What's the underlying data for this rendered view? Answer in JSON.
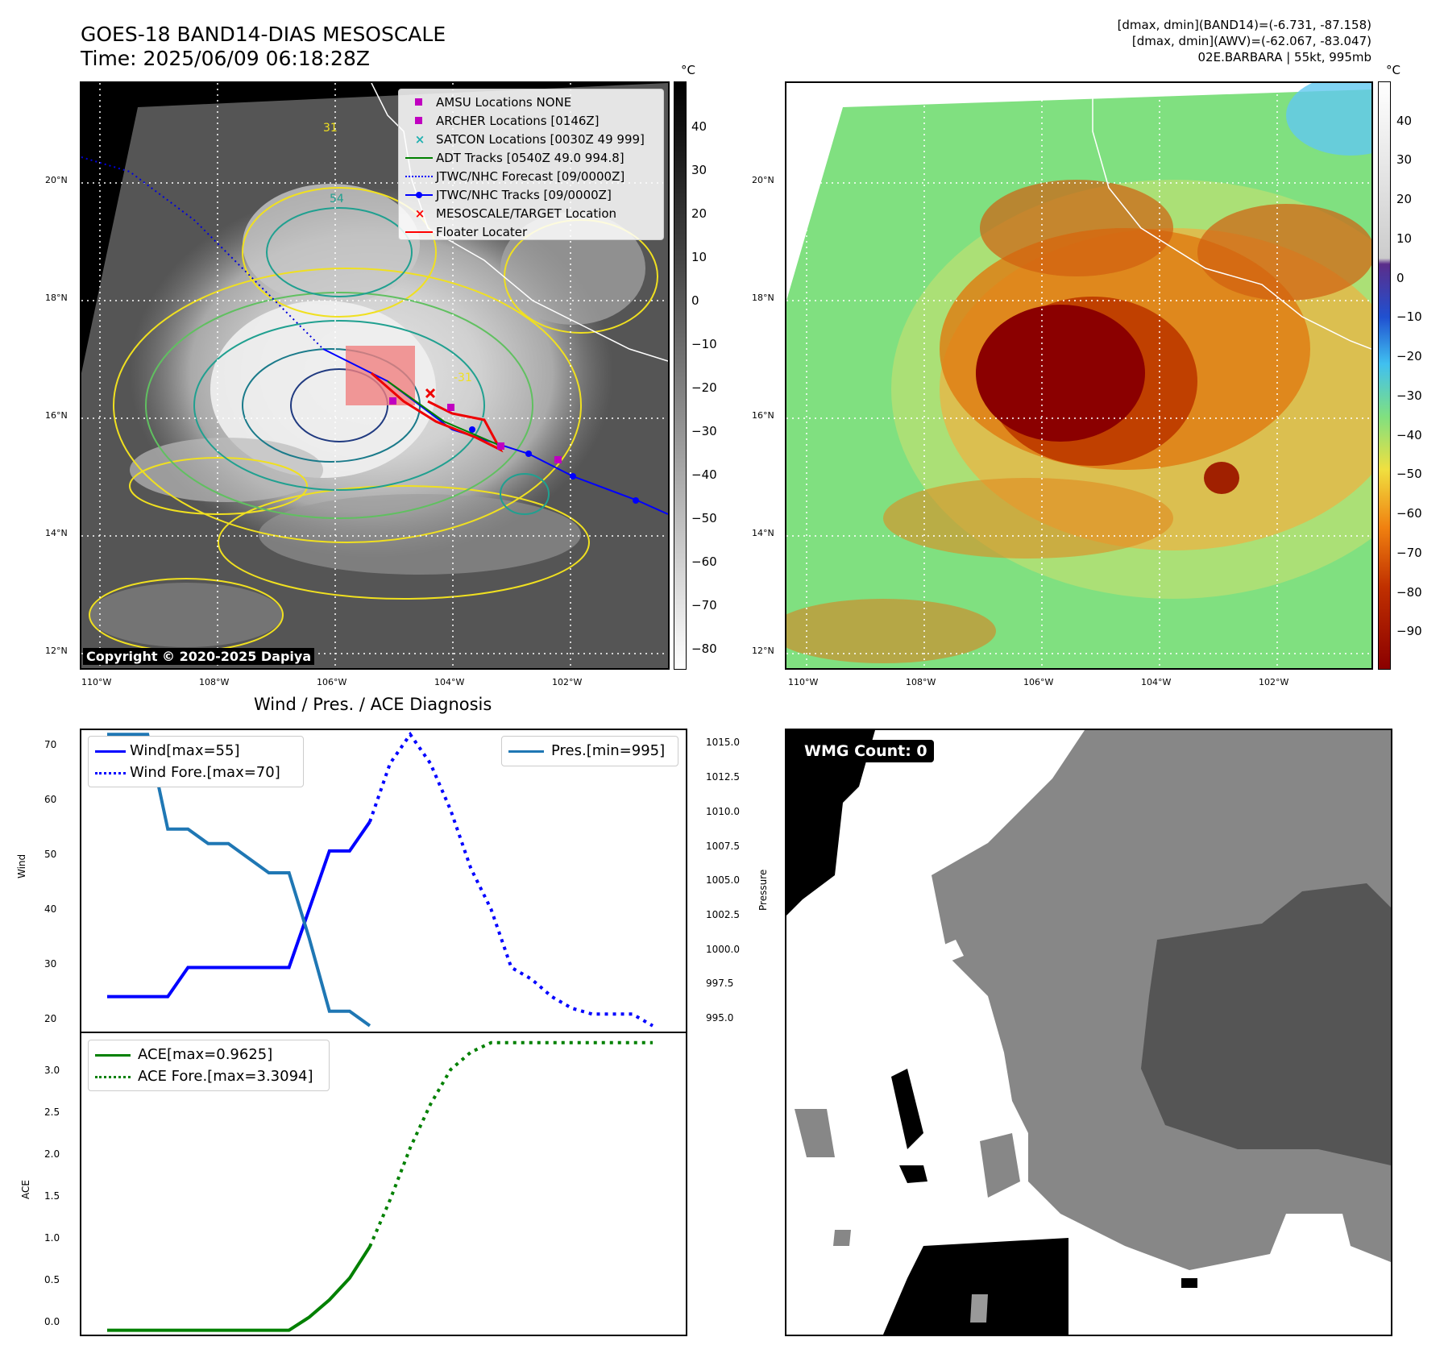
{
  "header": {
    "title_line1": "GOES-18 BAND14-DIAS MESOSCALE",
    "title_line2": "Time: 2025/06/09 06:18:28Z",
    "info_line1": "[dmax, dmin](BAND14)=(-6.731, -87.158)",
    "info_line2": "[dmax, dmin](AWV)=(-62.067, -83.047)",
    "info_line3": "02E.BARBARA | 55kt, 995mb"
  },
  "map_axes": {
    "lat_labels": [
      "20°N",
      "18°N",
      "16°N",
      "14°N",
      "12°N"
    ],
    "lon_labels": [
      "110°W",
      "108°W",
      "106°W",
      "104°W",
      "102°W"
    ]
  },
  "ir_panel": {
    "colorbar_unit": "°C",
    "colorbar_ticks": [
      "40",
      "30",
      "20",
      "10",
      "0",
      "−10",
      "−20",
      "−30",
      "−40",
      "−50",
      "−60",
      "−70",
      "−80"
    ],
    "copyright": "Copyright © 2020-2025 Dapiya",
    "contour_labels": [
      "31",
      "54",
      "-31"
    ],
    "legend": [
      {
        "label": "AMSU Locations NONE",
        "symbol": "square",
        "color": "#c000c0"
      },
      {
        "label": "ARCHER Locations [0146Z]",
        "symbol": "square",
        "color": "#c000c0"
      },
      {
        "label": "SATCON Locations [0030Z 49 999]",
        "symbol": "x",
        "color": "#20b0b0"
      },
      {
        "label": "ADT Tracks [0540Z 49.0 994.8]",
        "symbol": "line",
        "color": "#008000"
      },
      {
        "label": "JTWC/NHC Forecast [09/0000Z]",
        "symbol": "dotted",
        "color": "#0000ff"
      },
      {
        "label": "JTWC/NHC Tracks [09/0000Z]",
        "symbol": "line-dot",
        "color": "#0000ff"
      },
      {
        "label": "MESOSCALE/TARGET Location",
        "symbol": "x",
        "color": "#ff0000"
      },
      {
        "label": "Floater Locater",
        "symbol": "line",
        "color": "#ff0000"
      }
    ]
  },
  "awv_panel": {
    "colorbar_unit": "°C",
    "colorbar_ticks": [
      "40",
      "30",
      "20",
      "10",
      "0",
      "−10",
      "−20",
      "−30",
      "−40",
      "−50",
      "−60",
      "−70",
      "−80",
      "−90"
    ]
  },
  "diagnosis": {
    "title": "Wind / Pres. / ACE Diagnosis",
    "wind_ylabel": "Wind",
    "pres_ylabel": "Pressure",
    "ace_ylabel": "ACE",
    "wind_ticks": [
      "70",
      "60",
      "50",
      "40",
      "30",
      "20"
    ],
    "pres_ticks": [
      "1015.0",
      "1012.5",
      "1010.0",
      "1007.5",
      "1005.0",
      "1002.5",
      "1000.0",
      "997.5",
      "995.0"
    ],
    "ace_ticks": [
      "3.0",
      "2.5",
      "2.0",
      "1.5",
      "1.0",
      "0.5",
      "0.0"
    ],
    "legend_wind": "Wind[max=55]",
    "legend_wind_fore": "Wind Fore.[max=70]",
    "legend_pres": "Pres.[min=995]",
    "legend_ace": "ACE[max=0.9625]",
    "legend_ace_fore": "ACE Fore.[max=3.3094]"
  },
  "wmg_panel": {
    "label": "WMG Count: 0"
  },
  "chart_data": [
    {
      "type": "line",
      "title": "Wind / Pres. / ACE Diagnosis",
      "ylabel": "Wind",
      "ylim": [
        19,
        71
      ],
      "series": [
        {
          "name": "Wind[max=55]",
          "style": "solid",
          "color": "#0000ff",
          "x": [
            0,
            1,
            2,
            3,
            4,
            5,
            6,
            7,
            8,
            9,
            10,
            11,
            12,
            13
          ],
          "y": [
            25,
            25,
            25,
            25,
            30,
            30,
            30,
            30,
            30,
            30,
            40,
            50,
            50,
            55
          ]
        },
        {
          "name": "Wind Fore.[max=70]",
          "style": "dotted",
          "color": "#0000ff",
          "x": [
            13,
            14,
            15,
            16,
            17,
            18,
            19,
            20,
            21,
            22,
            23,
            24,
            25,
            26,
            27
          ],
          "y": [
            55,
            65,
            70,
            65,
            57,
            47,
            40,
            30,
            28,
            25,
            23,
            22,
            22,
            22,
            20
          ]
        }
      ]
    },
    {
      "type": "line",
      "ylabel": "Pressure",
      "ylim": [
        994.6,
        1015.4
      ],
      "series": [
        {
          "name": "Pres.[min=995]",
          "style": "solid",
          "color": "#1f77b4",
          "x": [
            0,
            1,
            2,
            3,
            4,
            5,
            6,
            7,
            8,
            9,
            10,
            11,
            12,
            13
          ],
          "y": [
            1015,
            1015,
            1015,
            1008.5,
            1008.5,
            1007.5,
            1007.5,
            1006.5,
            1005.5,
            1005.5,
            1001,
            996,
            996,
            995
          ]
        }
      ]
    },
    {
      "type": "line",
      "ylabel": "ACE",
      "ylim": [
        -0.05,
        3.4
      ],
      "series": [
        {
          "name": "ACE[max=0.9625]",
          "style": "solid",
          "color": "#008000",
          "x": [
            0,
            1,
            2,
            3,
            4,
            5,
            6,
            7,
            8,
            9,
            10,
            11,
            12,
            13
          ],
          "y": [
            0,
            0,
            0,
            0,
            0,
            0,
            0,
            0,
            0,
            0,
            0.15,
            0.35,
            0.6,
            0.9625
          ]
        },
        {
          "name": "ACE Fore.[max=3.3094]",
          "style": "dotted",
          "color": "#008000",
          "x": [
            13,
            14,
            15,
            16,
            17,
            18,
            19,
            20,
            21,
            22,
            23,
            24,
            25,
            26,
            27
          ],
          "y": [
            0.9625,
            1.5,
            2.1,
            2.6,
            3.0,
            3.2,
            3.3094,
            3.3094,
            3.3094,
            3.3094,
            3.3094,
            3.3094,
            3.3094,
            3.3094,
            3.3094
          ]
        }
      ]
    }
  ]
}
